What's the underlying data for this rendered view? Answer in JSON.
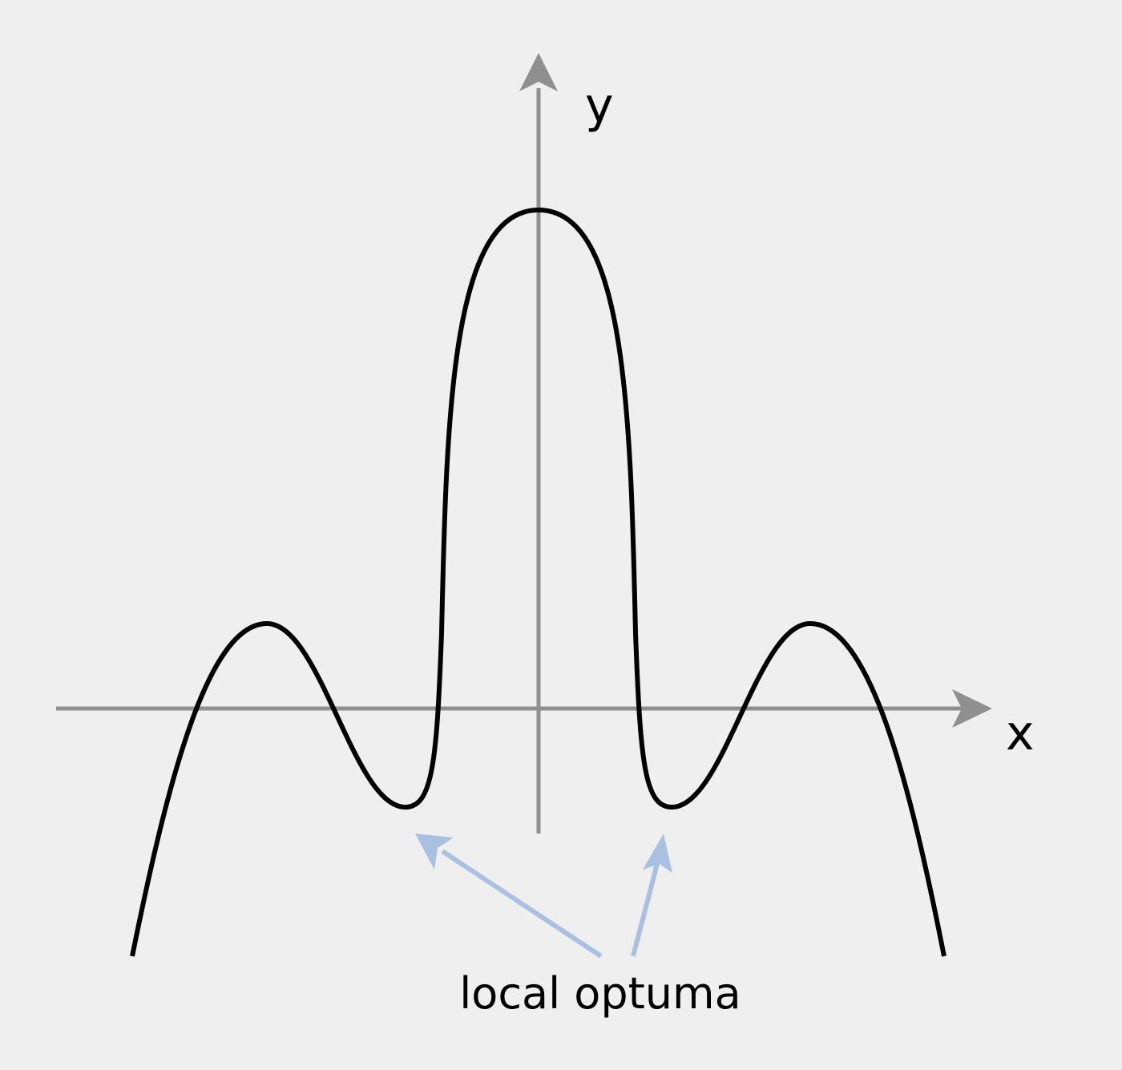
{
  "diagram": {
    "x_axis_label": "x",
    "y_axis_label": "y",
    "annotation": "local optuma"
  },
  "colors": {
    "background": "#efefef",
    "axis": "#8f8f8f",
    "curve": "#000000",
    "arrow": "#a9c0e0",
    "text": "#000000"
  }
}
